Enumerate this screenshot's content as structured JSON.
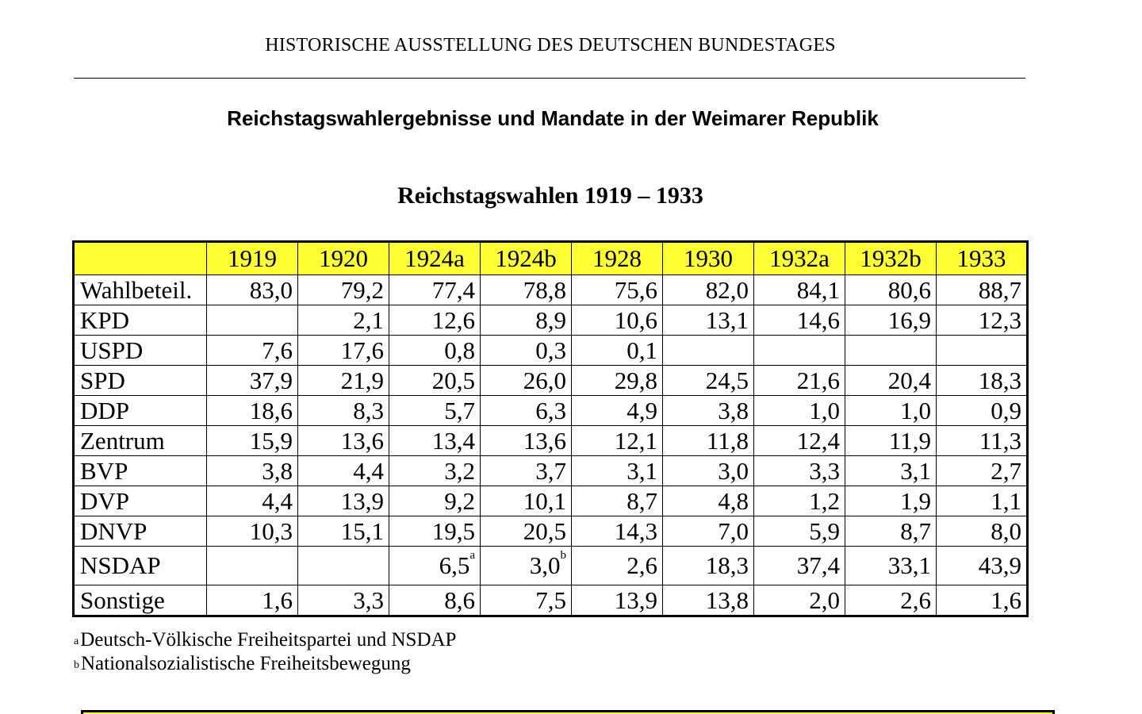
{
  "header": {
    "org": "HISTORISCHE AUSSTELLUNG DES DEUTSCHEN BUNDESTAGES"
  },
  "title": "Reichstagswahlergebnisse und Mandate in der Weimarer Republik",
  "subtitle": "Reichstagswahlen 1919 – 1933",
  "table": {
    "columns": [
      "1919",
      "1920",
      "1924a",
      "1924b",
      "1928",
      "1930",
      "1932a",
      "1932b",
      "1933"
    ],
    "rows": [
      {
        "label": "Wahlbeteil.",
        "values": [
          "83,0",
          "79,2",
          "77,4",
          "78,8",
          "75,6",
          "82,0",
          "84,1",
          "80,6",
          "88,7"
        ],
        "notes": [
          "",
          "",
          "",
          "",
          "",
          "",
          "",
          "",
          ""
        ]
      },
      {
        "label": "KPD",
        "values": [
          "",
          "2,1",
          "12,6",
          "8,9",
          "10,6",
          "13,1",
          "14,6",
          "16,9",
          "12,3"
        ],
        "notes": [
          "",
          "",
          "",
          "",
          "",
          "",
          "",
          "",
          ""
        ]
      },
      {
        "label": "USPD",
        "values": [
          "7,6",
          "17,6",
          "0,8",
          "0,3",
          "0,1",
          "",
          "",
          "",
          ""
        ],
        "notes": [
          "",
          "",
          "",
          "",
          "",
          "",
          "",
          "",
          ""
        ]
      },
      {
        "label": "SPD",
        "values": [
          "37,9",
          "21,9",
          "20,5",
          "26,0",
          "29,8",
          "24,5",
          "21,6",
          "20,4",
          "18,3"
        ],
        "notes": [
          "",
          "",
          "",
          "",
          "",
          "",
          "",
          "",
          ""
        ]
      },
      {
        "label": "DDP",
        "values": [
          "18,6",
          "8,3",
          "5,7",
          "6,3",
          "4,9",
          "3,8",
          "1,0",
          "1,0",
          "0,9"
        ],
        "notes": [
          "",
          "",
          "",
          "",
          "",
          "",
          "",
          "",
          ""
        ]
      },
      {
        "label": "Zentrum",
        "values": [
          "15,9",
          "13,6",
          "13,4",
          "13,6",
          "12,1",
          "11,8",
          "12,4",
          "11,9",
          "11,3"
        ],
        "notes": [
          "",
          "",
          "",
          "",
          "",
          "",
          "",
          "",
          ""
        ]
      },
      {
        "label": "BVP",
        "values": [
          "3,8",
          "4,4",
          "3,2",
          "3,7",
          "3,1",
          "3,0",
          "3,3",
          "3,1",
          "2,7"
        ],
        "notes": [
          "",
          "",
          "",
          "",
          "",
          "",
          "",
          "",
          ""
        ]
      },
      {
        "label": "DVP",
        "values": [
          "4,4",
          "13,9",
          "9,2",
          "10,1",
          "8,7",
          "4,8",
          "1,2",
          "1,9",
          "1,1"
        ],
        "notes": [
          "",
          "",
          "",
          "",
          "",
          "",
          "",
          "",
          ""
        ]
      },
      {
        "label": "DNVP",
        "values": [
          "10,3",
          "15,1",
          "19,5",
          "20,5",
          "14,3",
          "7,0",
          "5,9",
          "8,7",
          "8,0"
        ],
        "notes": [
          "",
          "",
          "",
          "",
          "",
          "",
          "",
          "",
          ""
        ]
      },
      {
        "label": "NSDAP",
        "values": [
          "",
          "",
          "6,5",
          "3,0",
          "2,6",
          "18,3",
          "37,4",
          "33,1",
          "43,9"
        ],
        "notes": [
          "",
          "",
          "a",
          "b",
          "",
          "",
          "",
          "",
          ""
        ]
      },
      {
        "label": "Sonstige",
        "values": [
          "1,6",
          "3,3",
          "8,6",
          "7,5",
          "13,9",
          "13,8",
          "2,0",
          "2,6",
          "1,6"
        ],
        "notes": [
          "",
          "",
          "",
          "",
          "",
          "",
          "",
          "",
          ""
        ]
      }
    ]
  },
  "footnotes": [
    {
      "mark": "a",
      "text": "Deutsch-Völkische Freiheitspartei und NSDAP"
    },
    {
      "mark": "b",
      "text": "Nationalsozialistische Freiheitsbewegung"
    }
  ],
  "colors": {
    "header_fill": "#ffff33",
    "border": "#000000"
  }
}
